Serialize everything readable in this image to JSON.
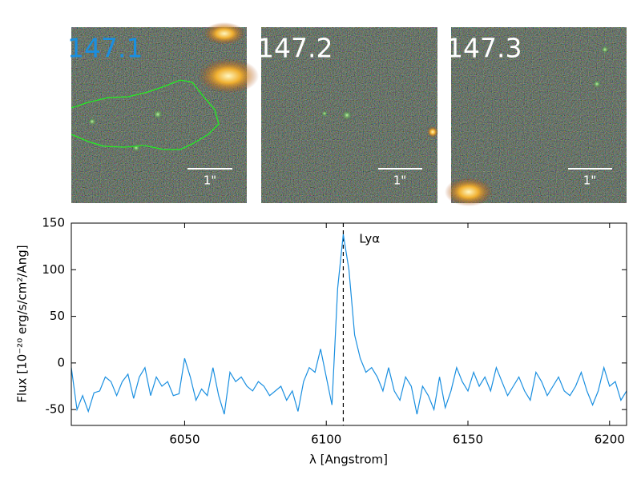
{
  "panels": [
    {
      "label": "147.1",
      "color": "#1a8fe0",
      "scale_label": "1\""
    },
    {
      "label": "147.2",
      "color": "#ffffff",
      "scale_label": "1\""
    },
    {
      "label": "147.3",
      "color": "#ffffff",
      "scale_label": "1\""
    }
  ],
  "chart_data": {
    "type": "line",
    "xlabel": "λ [Angstrom]",
    "ylabel": "Flux [10⁻²⁰ erg/s/cm²/Ang]",
    "x": [
      6010,
      6012,
      6014,
      6016,
      6018,
      6020,
      6022,
      6024,
      6026,
      6028,
      6030,
      6032,
      6034,
      6036,
      6038,
      6040,
      6042,
      6044,
      6046,
      6048,
      6050,
      6052,
      6054,
      6056,
      6058,
      6060,
      6062,
      6064,
      6066,
      6068,
      6070,
      6072,
      6074,
      6076,
      6078,
      6080,
      6082,
      6084,
      6086,
      6088,
      6090,
      6092,
      6094,
      6096,
      6098,
      6100,
      6102,
      6104,
      6106,
      6108,
      6110,
      6112,
      6114,
      6116,
      6118,
      6120,
      6122,
      6124,
      6126,
      6128,
      6130,
      6132,
      6134,
      6136,
      6138,
      6140,
      6142,
      6144,
      6146,
      6148,
      6150,
      6152,
      6154,
      6156,
      6158,
      6160,
      6162,
      6164,
      6166,
      6168,
      6170,
      6172,
      6174,
      6176,
      6178,
      6180,
      6182,
      6184,
      6186,
      6188,
      6190,
      6192,
      6194,
      6196,
      6198,
      6200,
      6202,
      6204,
      6206
    ],
    "values": [
      -5,
      -50,
      -35,
      -52,
      -32,
      -30,
      -15,
      -20,
      -35,
      -20,
      -12,
      -38,
      -15,
      -5,
      -35,
      -15,
      -25,
      -20,
      -35,
      -33,
      5,
      -15,
      -40,
      -28,
      -35,
      -5,
      -35,
      -55,
      -10,
      -20,
      -15,
      -25,
      -30,
      -20,
      -25,
      -35,
      -30,
      -25,
      -40,
      -30,
      -52,
      -20,
      -5,
      -10,
      15,
      -15,
      -45,
      80,
      138,
      100,
      30,
      5,
      -10,
      -5,
      -15,
      -30,
      -5,
      -30,
      -40,
      -15,
      -25,
      -55,
      -25,
      -35,
      -50,
      -15,
      -48,
      -30,
      -5,
      -20,
      -30,
      -10,
      -25,
      -15,
      -30,
      -5,
      -20,
      -35,
      -25,
      -15,
      -30,
      -40,
      -10,
      -20,
      -35,
      -25,
      -15,
      -30,
      -35,
      -25,
      -10,
      -30,
      -45,
      -30,
      -5,
      -25,
      -20,
      -40,
      -30
    ],
    "color": "#1a8fe0",
    "xlim": [
      6010,
      6206
    ],
    "ylim": [
      -67,
      150
    ],
    "xticks": [
      6050,
      6100,
      6150,
      6200
    ],
    "yticks": [
      -50,
      0,
      50,
      100,
      150
    ],
    "vline": {
      "x": 6106,
      "label": "Lyα"
    }
  }
}
